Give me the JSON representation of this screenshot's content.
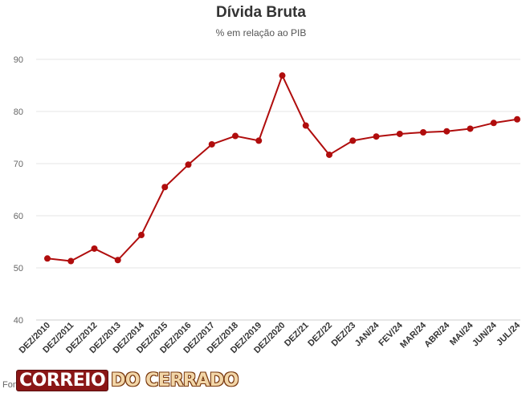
{
  "chart_data": {
    "type": "line",
    "title": "Dívida Bruta",
    "subtitle": "% em relação ao PIB",
    "categories": [
      "DEZ/2010",
      "DEZ/2011",
      "DEZ/2012",
      "DEZ/2013",
      "DEZ/2014",
      "DEZ/2015",
      "DEZ/2016",
      "DEZ/2017",
      "DEZ/2018",
      "DEZ/2019",
      "DEZ/2020",
      "DEZ/21",
      "DEZ/22",
      "DEZ/23",
      "JAN/24",
      "FEV/24",
      "MAR/24",
      "ABR/24",
      "MAI/24",
      "JUN/24",
      "JUL/24"
    ],
    "series": [
      {
        "values": [
          51.8,
          51.3,
          53.7,
          51.5,
          56.3,
          65.5,
          69.8,
          73.7,
          75.3,
          74.4,
          86.9,
          77.3,
          71.7,
          74.4,
          75.2,
          75.7,
          76.0,
          76.2,
          76.7,
          77.8,
          78.5
        ]
      }
    ],
    "ylim": [
      40,
      90
    ],
    "yticks": [
      40,
      50,
      60,
      70,
      80,
      90
    ],
    "grid": true,
    "legend": "none",
    "line_color": "#b00d0d"
  },
  "footer": {
    "source_label": "Fon",
    "logo_part1": "CORREIO",
    "logo_part2": "DO CERRADO"
  }
}
